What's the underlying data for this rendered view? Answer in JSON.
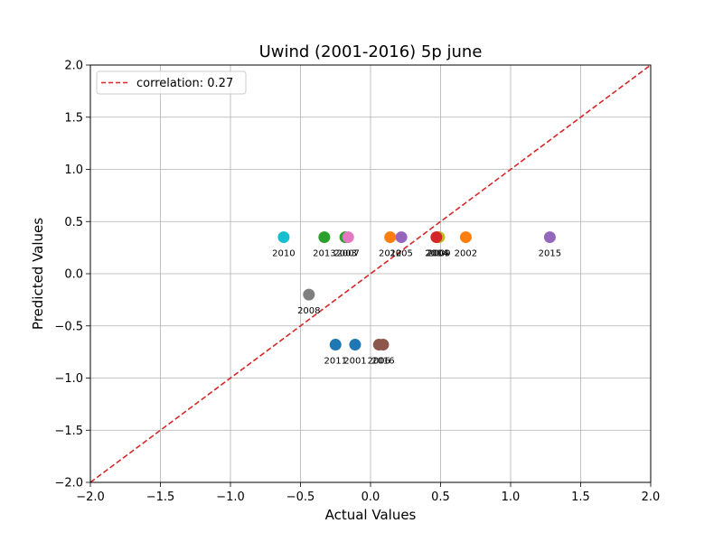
{
  "chart_data": {
    "type": "scatter",
    "title": "Uwind (2001-2016) 5p june",
    "xlabel": "Actual Values",
    "ylabel": "Predicted Values",
    "xlim": [
      -2.0,
      2.0
    ],
    "ylim": [
      -2.0,
      2.0
    ],
    "xticks": [
      "−2.0",
      "−1.5",
      "−1.0",
      "−0.5",
      "0.0",
      "0.5",
      "1.0",
      "1.5",
      "2.0"
    ],
    "yticks": [
      "−2.0",
      "−1.5",
      "−1.0",
      "−0.5",
      "0.0",
      "0.5",
      "1.0",
      "1.5",
      "2.0"
    ],
    "grid": true,
    "legend": {
      "placement": "upper-left",
      "entries": [
        "correlation: 0.27"
      ]
    },
    "reference_line": {
      "style": "dashed",
      "color": "#d62728",
      "from": [
        -2.0,
        -2.0
      ],
      "to": [
        2.0,
        2.0
      ]
    },
    "points": [
      {
        "label": "2001",
        "x": -0.11,
        "y": -0.68,
        "color": "#1f77b4"
      },
      {
        "label": "2002",
        "x": 0.68,
        "y": 0.35,
        "color": "#ff7f0e"
      },
      {
        "label": "2003",
        "x": -0.18,
        "y": 0.35,
        "color": "#2ca02c"
      },
      {
        "label": "2004",
        "x": 0.48,
        "y": 0.35,
        "color": "#d62728"
      },
      {
        "label": "2005",
        "x": 0.22,
        "y": 0.35,
        "color": "#9467bd"
      },
      {
        "label": "2006",
        "x": 0.06,
        "y": -0.68,
        "color": "#8c564b"
      },
      {
        "label": "2007",
        "x": -0.16,
        "y": 0.35,
        "color": "#e377c2"
      },
      {
        "label": "2008",
        "x": -0.44,
        "y": -0.2,
        "color": "#7f7f7f"
      },
      {
        "label": "2009",
        "x": 0.49,
        "y": 0.35,
        "color": "#bcbd22"
      },
      {
        "label": "2010",
        "x": -0.62,
        "y": 0.35,
        "color": "#17becf"
      },
      {
        "label": "2011",
        "x": -0.25,
        "y": -0.68,
        "color": "#1f77b4"
      },
      {
        "label": "2012",
        "x": 0.14,
        "y": 0.35,
        "color": "#ff7f0e"
      },
      {
        "label": "2013",
        "x": -0.33,
        "y": 0.35,
        "color": "#2ca02c"
      },
      {
        "label": "2014",
        "x": 0.47,
        "y": 0.35,
        "color": "#d62728"
      },
      {
        "label": "2015",
        "x": 1.28,
        "y": 0.35,
        "color": "#9467bd"
      },
      {
        "label": "2016",
        "x": 0.09,
        "y": -0.68,
        "color": "#8c564b"
      }
    ]
  }
}
